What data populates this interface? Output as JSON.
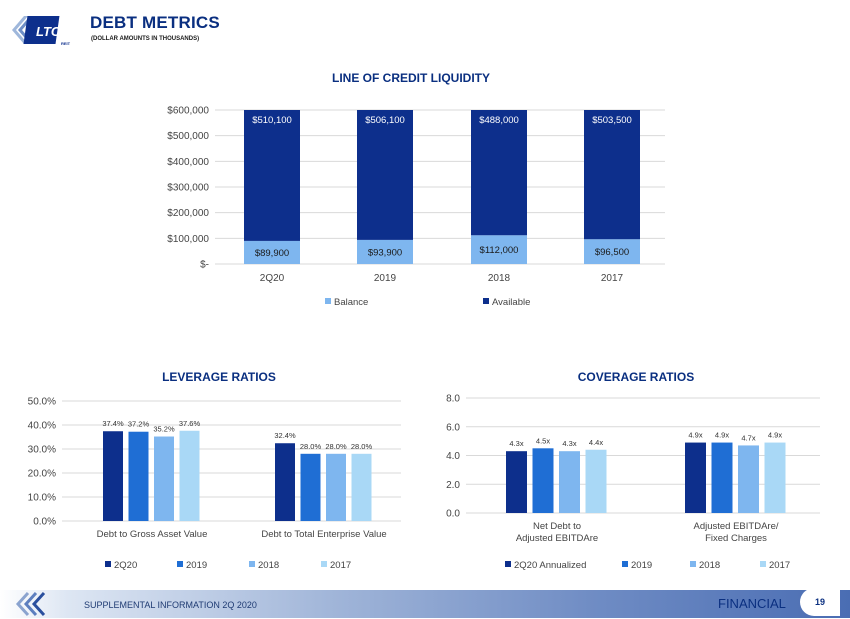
{
  "header": {
    "logo_text": "LTC",
    "logo_subtext": "REIT",
    "title": "DEBT METRICS",
    "subtitle": "(DOLLAR AMOUNTS IN THOUSANDS)"
  },
  "footer": {
    "text": "SUPPLEMENTAL INFORMATION  2Q 2020",
    "section": "FINANCIAL",
    "page_number": "19"
  },
  "colors": {
    "navy": "#0d2f8c",
    "blue": "#1f6ed4",
    "light_blue": "#7eb6ef",
    "pale_blue": "#a9d8f6",
    "title": "#0a2f80"
  },
  "chart_data": [
    {
      "type": "bar",
      "stacked": true,
      "title": "LINE OF CREDIT LIQUIDITY",
      "categories": [
        "2Q20",
        "2019",
        "2018",
        "2017"
      ],
      "series": [
        {
          "name": "Balance",
          "values": [
            89900,
            93900,
            112000,
            96500
          ],
          "labels": [
            "$89,900",
            "$93,900",
            "$112,000",
            "$96,500"
          ]
        },
        {
          "name": "Available",
          "values": [
            510100,
            506100,
            488000,
            503500
          ],
          "labels": [
            "$510,100",
            "$506,100",
            "$488,000",
            "$503,500"
          ]
        }
      ],
      "ylim": [
        0,
        600000
      ],
      "yticks": [
        "$-",
        "$100,000",
        "$200,000",
        "$300,000",
        "$400,000",
        "$500,000",
        "$600,000"
      ],
      "grid": true,
      "legend": "bottom"
    },
    {
      "type": "bar",
      "title": "LEVERAGE RATIOS",
      "categories": [
        "Debt to Gross Asset Value",
        "Debt to Total Enterprise Value"
      ],
      "series": [
        {
          "name": "2Q20",
          "values": [
            37.4,
            32.4
          ],
          "labels": [
            "37.4%",
            "32.4%"
          ]
        },
        {
          "name": "2019",
          "values": [
            37.2,
            28.0
          ],
          "labels": [
            "37.2%",
            "28.0%"
          ]
        },
        {
          "name": "2018",
          "values": [
            35.2,
            28.0
          ],
          "labels": [
            "35.2%",
            "28.0%"
          ]
        },
        {
          "name": "2017",
          "values": [
            37.6,
            28.0
          ],
          "labels": [
            "37.6%",
            "28.0%"
          ]
        }
      ],
      "ylim": [
        0,
        50
      ],
      "yticks": [
        "0.0%",
        "10.0%",
        "20.0%",
        "30.0%",
        "40.0%",
        "50.0%"
      ],
      "grid": true,
      "legend": "bottom"
    },
    {
      "type": "bar",
      "title": "COVERAGE RATIOS",
      "categories": [
        [
          "Net Debt to",
          "Adjusted EBITDAre"
        ],
        [
          "Adjusted EBITDAre/",
          "Fixed Charges"
        ]
      ],
      "series": [
        {
          "name": "2Q20 Annualized",
          "values": [
            4.3,
            4.9
          ],
          "labels": [
            "4.3x",
            "4.9x"
          ]
        },
        {
          "name": "2019",
          "values": [
            4.5,
            4.9
          ],
          "labels": [
            "4.5x",
            "4.9x"
          ]
        },
        {
          "name": "2018",
          "values": [
            4.3,
            4.7
          ],
          "labels": [
            "4.3x",
            "4.7x"
          ]
        },
        {
          "name": "2017",
          "values": [
            4.4,
            4.9
          ],
          "labels": [
            "4.4x",
            "4.9x"
          ]
        }
      ],
      "ylim": [
        0,
        8
      ],
      "yticks": [
        "0.0",
        "2.0",
        "4.0",
        "6.0",
        "8.0"
      ],
      "grid": true,
      "legend": "bottom"
    }
  ]
}
